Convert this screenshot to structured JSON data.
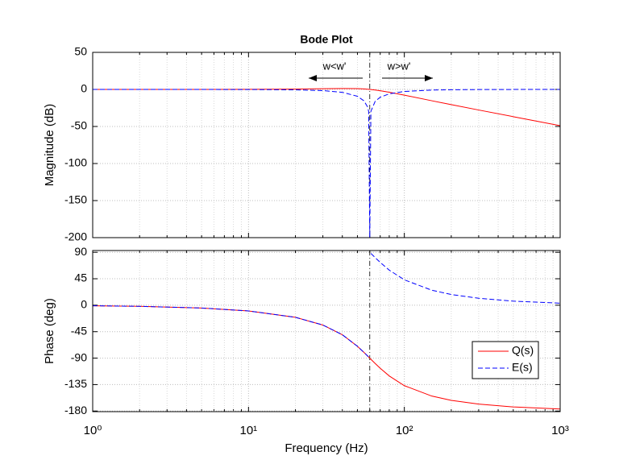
{
  "chart_data": [
    {
      "type": "line",
      "title": "Bode Plot",
      "y_label": "Magnitude (dB)",
      "log_x": true,
      "grid": true,
      "minor_grid": true,
      "x": [
        1,
        2,
        5,
        10,
        20,
        30,
        40,
        50,
        55,
        58,
        59,
        60,
        61,
        65,
        70,
        80,
        100,
        150,
        200,
        300,
        500,
        1000
      ],
      "xlim": [
        1,
        1000
      ],
      "xticks": [
        1,
        10,
        100,
        1000
      ],
      "ylim": [
        -200,
        50
      ],
      "yticks": [
        -200,
        -150,
        -100,
        -50,
        0,
        50
      ],
      "vline": 60,
      "annotations": [
        {
          "text": "w<w'"
        },
        {
          "text": "w>w'"
        }
      ],
      "series": [
        {
          "color": "#ff0000",
          "dash": "solid",
          "values": [
            0,
            0,
            0.03,
            0.12,
            0.45,
            0.9,
            1.23,
            1.04,
            0.63,
            0.27,
            0.14,
            0,
            -0.15,
            -0.81,
            -1.74,
            -3.77,
            -7.74,
            -15.29,
            -20.54,
            -27.79,
            -36.77,
            -48.86
          ]
        },
        {
          "color": "#0000ff",
          "dash": "dashed",
          "values": [
            0,
            0,
            -0.03,
            -0.12,
            -0.57,
            -1.6,
            -3.88,
            -9.26,
            -15.3,
            -23.4,
            -29.5,
            -200,
            -29.6,
            -16.0,
            -10.59,
            -5.95,
            -2.74,
            -0.89,
            -0.44,
            -0.19,
            -0.06,
            -0.02
          ]
        }
      ]
    },
    {
      "type": "line",
      "x_label": "Frequency (Hz)",
      "y_label": "Phase (deg)",
      "log_x": true,
      "grid": true,
      "minor_grid": true,
      "legend": "lower-right",
      "x": [
        1,
        2,
        5,
        10,
        20,
        30,
        40,
        50,
        55,
        58,
        59,
        60,
        61,
        65,
        70,
        80,
        100,
        150,
        200,
        300,
        500,
        1000
      ],
      "xlim": [
        1,
        1000
      ],
      "xticks": [
        {
          "value": 1,
          "label": "10⁰"
        },
        {
          "value": 10,
          "label": "10¹"
        },
        {
          "value": 100,
          "label": "10²"
        },
        {
          "value": 1000,
          "label": "10³"
        }
      ],
      "ylim": [
        -181,
        93
      ],
      "yticks": [
        -180,
        -135,
        -90,
        -45,
        0,
        45,
        90
      ],
      "vline": 60,
      "series": [
        {
          "name": "Q(s)",
          "color": "#ff0000",
          "dash": "solid",
          "values": [
            -0.95,
            -1.9,
            -4.8,
            -9.7,
            -20.6,
            -33.7,
            -50.2,
            -69.9,
            -80.1,
            -86.1,
            -88.1,
            -90,
            -91.9,
            -99.1,
            -107.2,
            -120.3,
            -136.8,
            -154.5,
            -161.8,
            -168.2,
            -173.0,
            -176.6
          ]
        },
        {
          "name": "E(s)",
          "color": "#0000ff",
          "dash": "dashed",
          "values": [
            -0.95,
            -1.9,
            -4.8,
            -9.7,
            -20.6,
            -33.7,
            -50.2,
            -69.9,
            -80.1,
            -86.1,
            -88.1,
            null,
            88.1,
            80.9,
            72.8,
            59.7,
            43.2,
            25.5,
            18.2,
            11.8,
            6.95,
            3.45
          ]
        }
      ]
    }
  ]
}
